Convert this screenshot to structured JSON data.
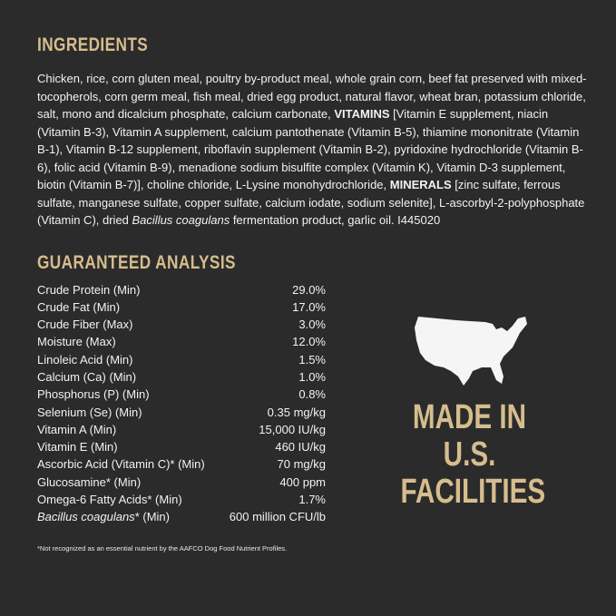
{
  "ingredients": {
    "heading": "INGREDIENTS",
    "segments": [
      {
        "t": "Chicken, rice, corn gluten meal, poultry by-product meal, whole grain corn, beef fat preserved with mixed-tocopherols, corn germ meal, fish meal, dried egg product, natural flavor, wheat bran, potassium chloride, salt, mono and dicalcium phosphate, calcium carbonate, ",
        "s": "n"
      },
      {
        "t": "VITAMINS",
        "s": "b"
      },
      {
        "t": " [Vitamin E supplement, niacin (Vitamin B-3), Vitamin A supplement, calcium pantothenate (Vitamin B-5), thiamine mononitrate (Vitamin B-1), Vitamin B-12 supplement, riboflavin supplement (Vitamin B-2), pyridoxine hydrochloride (Vitamin B-6), folic acid (Vitamin B-9), menadione sodium bisulfite complex (Vitamin K), Vitamin D-3 supplement, biotin (Vitamin B-7)], choline chloride, L-Lysine monohydrochloride, ",
        "s": "n"
      },
      {
        "t": "MINERALS",
        "s": "b"
      },
      {
        "t": " [zinc sulfate, ferrous sulfate, manganese sulfate, copper sulfate, calcium iodate, sodium selenite], L-ascorbyl-2-polyphosphate (Vitamin C), dried ",
        "s": "n"
      },
      {
        "t": "Bacillus coagulans",
        "s": "i"
      },
      {
        "t": " fermentation product, garlic oil. I445020",
        "s": "n"
      }
    ]
  },
  "analysis": {
    "heading": "GUARANTEED ANALYSIS",
    "rows": [
      {
        "label": "Crude Protein (Min)",
        "value": "29.0%"
      },
      {
        "label": "Crude Fat (Min)",
        "value": "17.0%"
      },
      {
        "label": "Crude Fiber (Max)",
        "value": "3.0%"
      },
      {
        "label": "Moisture (Max)",
        "value": "12.0%"
      },
      {
        "label": "Linoleic Acid (Min)",
        "value": "1.5%"
      },
      {
        "label": "Calcium (Ca) (Min)",
        "value": "1.0%"
      },
      {
        "label": "Phosphorus (P) (Min)",
        "value": "0.8%"
      },
      {
        "label": "Selenium (Se) (Min)",
        "value": "0.35 mg/kg"
      },
      {
        "label": "Vitamin A (Min)",
        "value": "15,000 IU/kg"
      },
      {
        "label": "Vitamin E (Min)",
        "value": "460 IU/kg"
      },
      {
        "label": "Ascorbic Acid (Vitamin C)* (Min)",
        "value": "70 mg/kg"
      },
      {
        "label": "Glucosamine* (Min)",
        "value": "400 ppm"
      },
      {
        "label": "Omega-6 Fatty Acids* (Min)",
        "value": "1.7%"
      },
      {
        "label_italic": "Bacillus coagulans",
        "label": "* (Min)",
        "value": "600 million CFU/lb"
      }
    ],
    "footnote": "*Not recognized as an essential nutrient by the AAFCO Dog Food Nutrient Profiles."
  },
  "badge": {
    "icon": "usa-map-icon",
    "lines": [
      "MADE IN",
      "U.S.",
      "FACILITIES"
    ]
  },
  "colors": {
    "background": "#2b2b2b",
    "accent": "#d6bd8e",
    "text": "#f2f2f2"
  }
}
